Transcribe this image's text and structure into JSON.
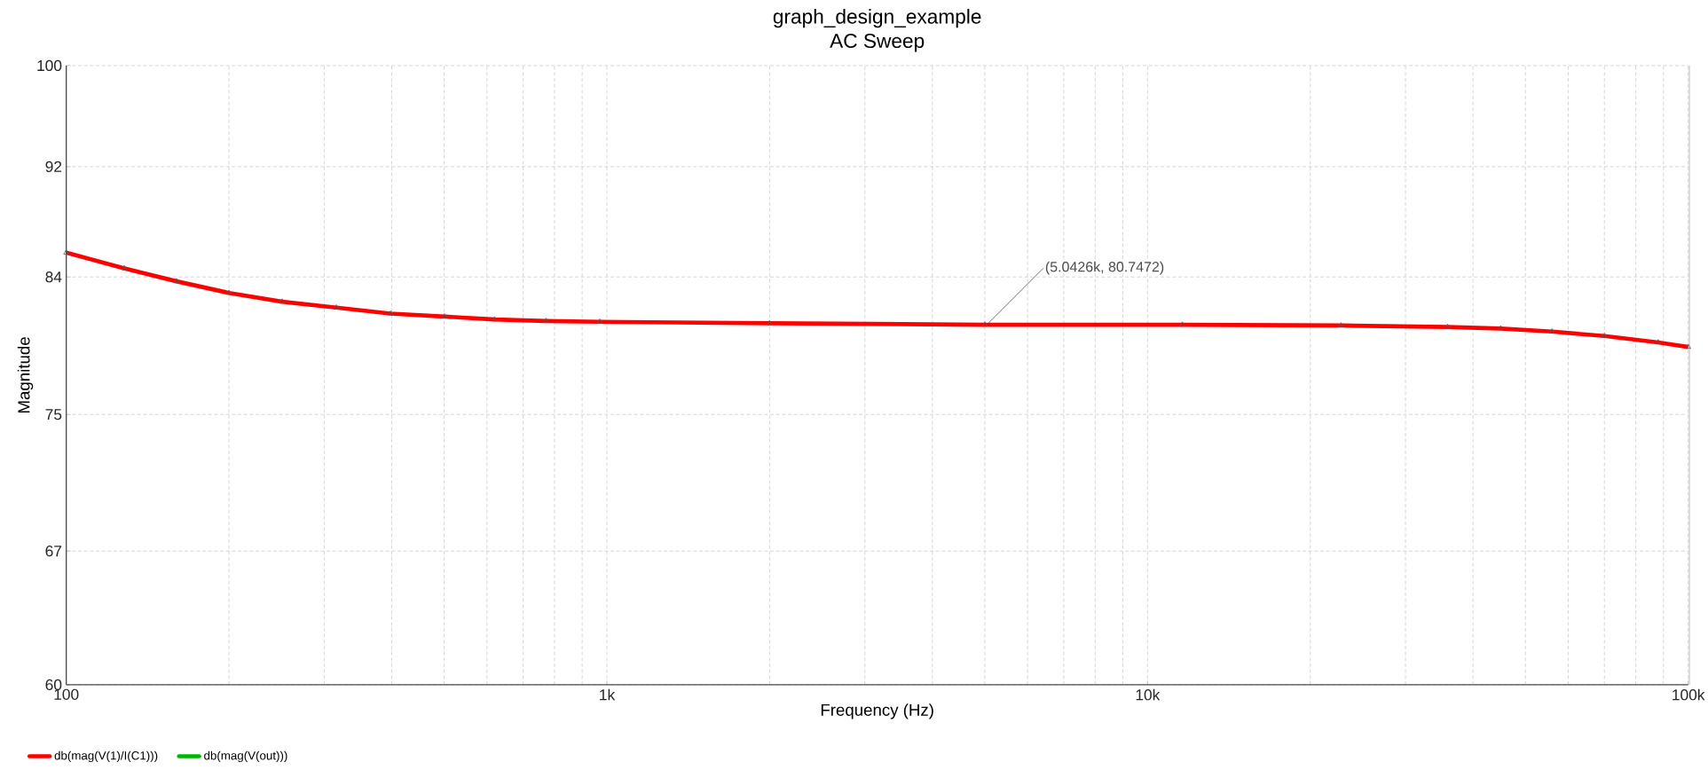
{
  "chart_data": {
    "type": "line",
    "title": "graph_design_example",
    "subtitle": "AC Sweep",
    "xlabel": "Frequency (Hz)",
    "ylabel": "Magnitude",
    "x": [
      100,
      128,
      160,
      200,
      251,
      316,
      398,
      501,
      620,
      772,
      970,
      2000,
      5000,
      11600,
      22800,
      35900,
      45000,
      56000,
      70000,
      88000,
      100000
    ],
    "series": [
      {
        "name": "db(mag(V(1)/I(C1)))",
        "color": "#ff0000",
        "values": [
          85.7,
          84.6,
          83.7,
          82.9,
          82.3,
          81.9,
          81.5,
          81.3,
          81.1,
          81.0,
          80.95,
          80.85,
          80.75,
          80.75,
          80.7,
          80.6,
          80.5,
          80.3,
          80.0,
          79.6,
          79.3
        ]
      },
      {
        "name": "db(mag(V(out)))",
        "color": "#00b400",
        "values": [
          null,
          null,
          null,
          null,
          null,
          null,
          null,
          null,
          null,
          null,
          null,
          null,
          null,
          null,
          null,
          null,
          null,
          null,
          null,
          null,
          null
        ]
      }
    ],
    "xlim": [
      100,
      100000
    ],
    "ylim": [
      60,
      100
    ],
    "xticks": [
      100,
      {
        "value": 1000,
        "label": "1k"
      },
      {
        "value": 10000,
        "label": "10k"
      },
      {
        "value": 100000,
        "label": "100k"
      }
    ],
    "yticks": [
      60,
      67,
      75,
      84,
      92,
      100
    ],
    "log": "xy",
    "grid": true,
    "legend": "bottom left",
    "marker": "triangle",
    "line_style": "solid",
    "annotations": [
      {
        "text": "(5.0426k, 80.7472)",
        "x": 5042.6,
        "y": 80.7472
      }
    ]
  }
}
